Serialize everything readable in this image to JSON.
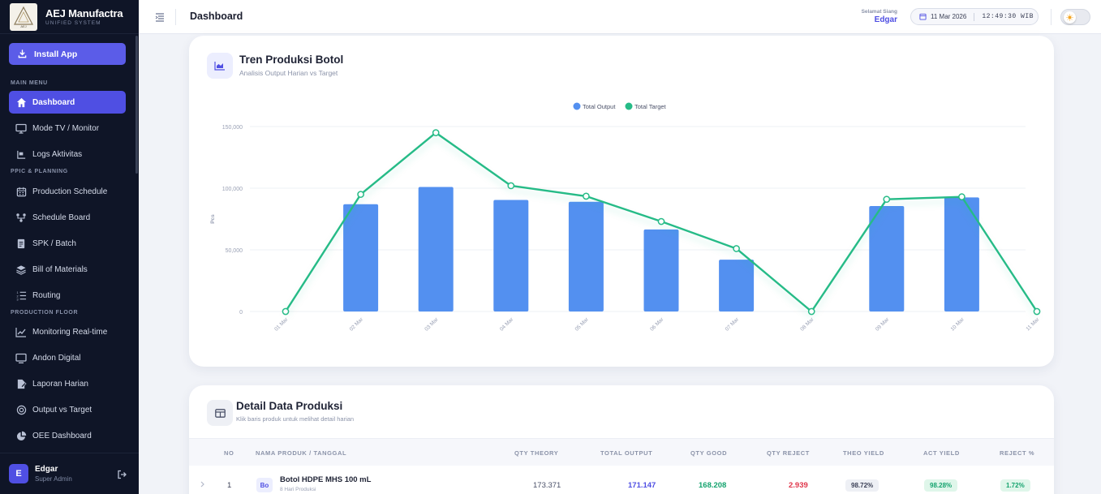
{
  "brand": {
    "title": "AEJ Manufactra",
    "subtitle": "UNIFIED SYSTEM",
    "logo_text": "AEJ"
  },
  "sidebar": {
    "install_label": "Install App",
    "sections": {
      "main": "MAIN MENU",
      "ppic": "PPIC & PLANNING",
      "floor": "PRODUCTION FLOOR"
    },
    "items": [
      {
        "label": "Dashboard",
        "icon": "home-icon",
        "active": true
      },
      {
        "label": "Mode TV / Monitor",
        "icon": "monitor-icon"
      },
      {
        "label": "Logs Aktivitas",
        "icon": "logs-icon"
      },
      {
        "label": "Production Schedule",
        "icon": "calendar-icon"
      },
      {
        "label": "Schedule Board",
        "icon": "board-icon"
      },
      {
        "label": "SPK / Batch",
        "icon": "document-icon"
      },
      {
        "label": "Bill of Materials",
        "icon": "layers-icon"
      },
      {
        "label": "Routing",
        "icon": "routing-icon"
      },
      {
        "label": "Monitoring Real-time",
        "icon": "line-chart-icon"
      },
      {
        "label": "Andon Digital",
        "icon": "display-icon"
      },
      {
        "label": "Laporan Harian",
        "icon": "report-icon"
      },
      {
        "label": "Output vs Target",
        "icon": "target-icon"
      },
      {
        "label": "OEE Dashboard",
        "icon": "pie-chart-icon"
      }
    ],
    "user": {
      "initial": "E",
      "name": "Edgar",
      "role": "Super Admin"
    }
  },
  "topbar": {
    "title": "Dashboard",
    "greeting_label": "Selamat Siang",
    "greeting_name": "Edgar",
    "date": "11 Mar 2026",
    "time": "12:49:30 WIB"
  },
  "chart_card": {
    "title": "Tren Produksi Botol",
    "subtitle": "Analisis Output Harian vs Target"
  },
  "chart_data": {
    "type": "bar",
    "categories": [
      "01 Mar",
      "02 Mar",
      "03 Mar",
      "04 Mar",
      "05 Mar",
      "06 Mar",
      "07 Mar",
      "08 Mar",
      "09 Mar",
      "10 Mar",
      "11 Mar"
    ],
    "series": [
      {
        "name": "Total Output",
        "type": "bar",
        "color": "#5390f0",
        "values": [
          0,
          87000,
          101000,
          90500,
          89000,
          66500,
          42000,
          0,
          85500,
          92500,
          0
        ]
      },
      {
        "name": "Total Target",
        "type": "line",
        "color": "#26bb87",
        "values": [
          0,
          95000,
          145000,
          102000,
          93500,
          73000,
          51000,
          0,
          91000,
          93000,
          0
        ]
      }
    ],
    "ylabel": "Pcs",
    "ylim": [
      0,
      150000
    ],
    "yticks": [
      0,
      50000,
      100000,
      150000
    ],
    "ytick_labels": [
      "0",
      "50,000",
      "100,000",
      "150,000"
    ],
    "legend": "top-center",
    "grid": true
  },
  "table_card": {
    "title": "Detail Data Produksi",
    "subtitle": "Klik baris produk untuk melihat detail harian",
    "columns": [
      "NO",
      "NAMA PRODUK / TANGGAL",
      "QTY THEORY",
      "TOTAL OUTPUT",
      "QTY GOOD",
      "QTY REJECT",
      "THEO YIELD",
      "ACT YIELD",
      "REJECT %"
    ],
    "rows": [
      {
        "no": "1",
        "badge": "Bo",
        "product": "Botol HDPE MHS 100 mL",
        "meta": "8 Hari Produksi",
        "qty_theory": "173.371",
        "total_output": "171.147",
        "qty_good": "168.208",
        "qty_reject": "2.939",
        "theo_yield": "98.72%",
        "act_yield": "98.28%",
        "reject_pct": "1.72%"
      }
    ]
  }
}
